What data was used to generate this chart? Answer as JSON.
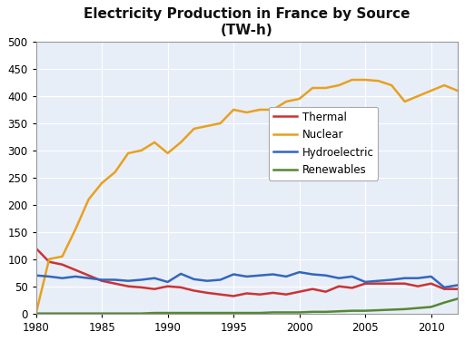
{
  "title": "Electricity Production in France by Source\n(TW-h)",
  "years": [
    1980,
    1981,
    1982,
    1983,
    1984,
    1985,
    1986,
    1987,
    1988,
    1989,
    1990,
    1991,
    1992,
    1993,
    1994,
    1995,
    1996,
    1997,
    1998,
    1999,
    2000,
    2001,
    2002,
    2003,
    2004,
    2005,
    2006,
    2007,
    2008,
    2009,
    2010,
    2011,
    2012
  ],
  "thermal": [
    120,
    95,
    90,
    80,
    70,
    60,
    55,
    50,
    48,
    45,
    50,
    48,
    42,
    38,
    35,
    32,
    37,
    35,
    38,
    35,
    40,
    45,
    40,
    50,
    47,
    55,
    55,
    55,
    55,
    50,
    55,
    45,
    45
  ],
  "nuclear": [
    0,
    100,
    105,
    155,
    210,
    240,
    260,
    295,
    300,
    315,
    295,
    315,
    340,
    345,
    350,
    375,
    370,
    375,
    375,
    390,
    395,
    415,
    415,
    420,
    430,
    430,
    428,
    420,
    390,
    400,
    410,
    420,
    410
  ],
  "hydro": [
    70,
    68,
    65,
    68,
    65,
    62,
    62,
    60,
    62,
    65,
    58,
    73,
    63,
    60,
    62,
    72,
    68,
    70,
    72,
    68,
    76,
    72,
    70,
    65,
    68,
    58,
    60,
    62,
    65,
    65,
    68,
    48,
    52
  ],
  "renewables": [
    0,
    0,
    0,
    0,
    0,
    0,
    0,
    0,
    0,
    1,
    1,
    1,
    1,
    1,
    1,
    1,
    1,
    1,
    2,
    2,
    2,
    3,
    3,
    4,
    5,
    5,
    6,
    7,
    8,
    10,
    12,
    20,
    27
  ],
  "thermal_color": "#cc3333",
  "nuclear_color": "#e8a020",
  "hydro_color": "#3366bb",
  "renewables_color": "#558833",
  "xlim": [
    1980,
    2012
  ],
  "ylim": [
    0,
    500
  ],
  "yticks": [
    0,
    50,
    100,
    150,
    200,
    250,
    300,
    350,
    400,
    450,
    500
  ],
  "xticks": [
    1980,
    1985,
    1990,
    1995,
    2000,
    2005,
    2010
  ],
  "background_color": "#ffffff",
  "plot_bg_color": "#e8eef8",
  "grid_color": "#ffffff",
  "legend_labels": [
    "Thermal",
    "Nuclear",
    "Hydroelectric",
    "Renewables"
  ],
  "linewidth": 1.8,
  "title_fontsize": 11,
  "tick_fontsize": 8.5,
  "legend_fontsize": 8.5
}
